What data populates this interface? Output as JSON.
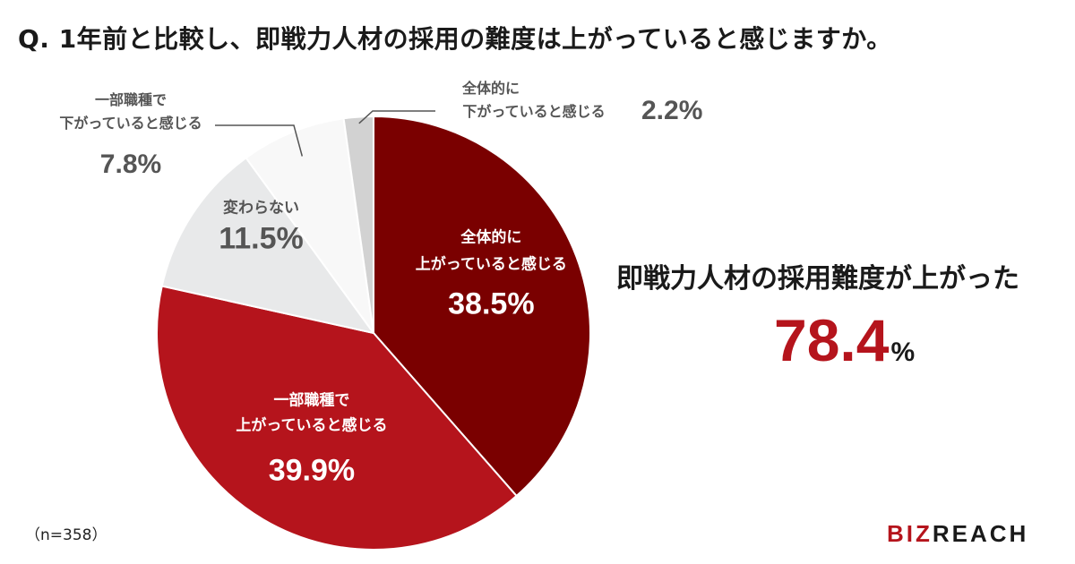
{
  "title": "Q. 1年前と比較し、即戦力人材の採用の難度は上がっていると感じますか。",
  "callout": {
    "label": "即戦力人材の採用難度が上がった",
    "value": "78.4",
    "unit": "%"
  },
  "sample_size": "（n=358）",
  "logo": {
    "text_a": "BIZ",
    "text_b": "REACH"
  },
  "colors": {
    "accent": "#b5141c",
    "dark_red": "#7a0000",
    "red": "#b5141c",
    "light_gray": "#e8e9ea",
    "white": "#f8f8f8",
    "gray": "#d2d2d2"
  },
  "chart_data": {
    "type": "pie",
    "start": "12 o'clock",
    "direction": "clockwise",
    "slices": [
      {
        "line1": "全体的に",
        "line2": "上がっていると感じる",
        "value": 38.5,
        "label": "38.5%",
        "color": "#7a0000",
        "label_pos": "inside"
      },
      {
        "line1": "一部職種で",
        "line2": "上がっていると感じる",
        "value": 39.9,
        "label": "39.9%",
        "color": "#b5141c",
        "label_pos": "inside"
      },
      {
        "line1": "変わらない",
        "line2": "",
        "value": 11.5,
        "label": "11.5%",
        "color": "#e8e9ea",
        "label_pos": "inside"
      },
      {
        "line1": "一部職種で",
        "line2": "下がっていると感じる",
        "value": 7.8,
        "label": "7.8%",
        "color": "#f8f8f8",
        "label_pos": "outside-left"
      },
      {
        "line1": "全体的に",
        "line2": "下がっていると感じる",
        "value": 2.2,
        "label": "2.2%",
        "color": "#d2d2d2",
        "label_pos": "outside-top"
      }
    ]
  }
}
